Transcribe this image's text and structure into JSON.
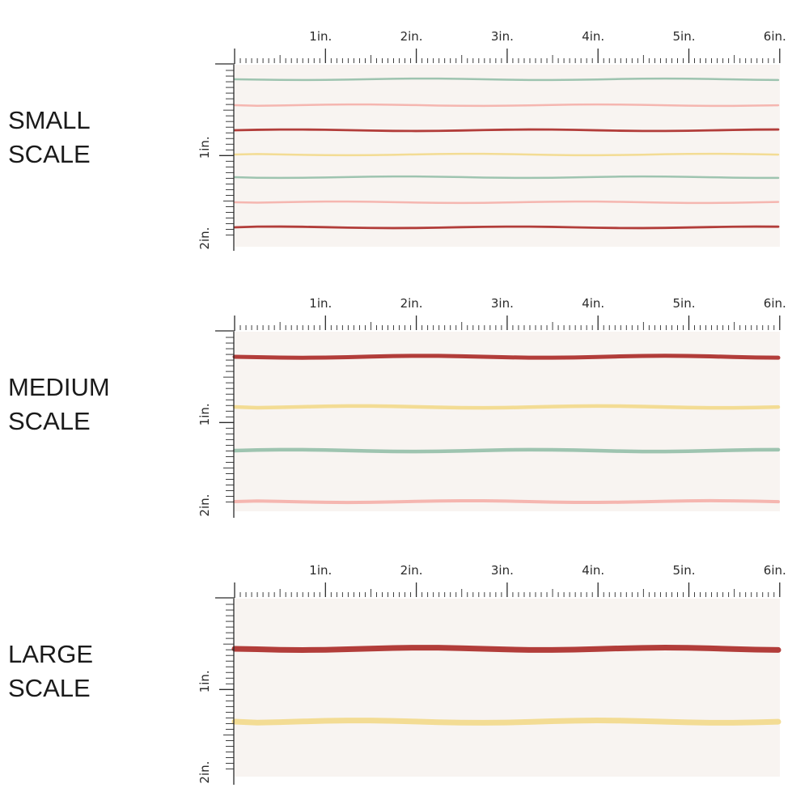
{
  "background_color": "#f8f4f1",
  "ruler_color": "#2b2b2b",
  "horizontal_ruler_labels": [
    "1in.",
    "2in.",
    "3in.",
    "4in.",
    "5in.",
    "6in."
  ],
  "vertical_ruler_labels": [
    "1in.",
    "2in."
  ],
  "panels": [
    {
      "label": "SMALL\nSCALE",
      "stripe_colors": [
        "#9ec4b0",
        "#f5b6b0",
        "#b23d3a",
        "#f3dc94",
        "#9ec4b0",
        "#f5b6b0",
        "#b23d3a"
      ]
    },
    {
      "label": "MEDIUM\nSCALE",
      "stripe_colors": [
        "#b23d3a",
        "#f3dc94",
        "#9ec4b0",
        "#f5b6b0"
      ]
    },
    {
      "label": "LARGE\nSCALE",
      "stripe_colors": [
        "#b23d3a",
        "#f3dc94"
      ]
    }
  ]
}
